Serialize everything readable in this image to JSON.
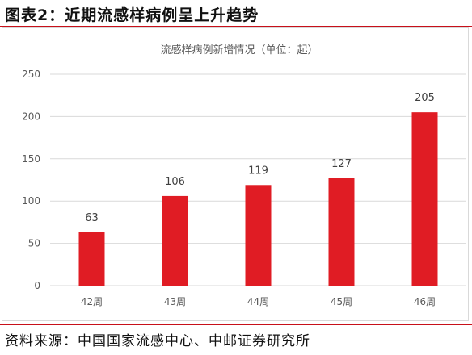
{
  "figure_title": "图表2：近期流感样病例呈上升趋势",
  "source_text": "资料来源：中国国家流感中心、中邮证券研究所",
  "colors": {
    "bar": "#e01c24",
    "rule": "#c8101a",
    "grid": "#d9d9d9",
    "axis_text": "#595959"
  },
  "chart_data": {
    "type": "bar",
    "title": "流感样病例新增情况（单位：起）",
    "categories": [
      "42周",
      "43周",
      "44周",
      "45周",
      "46周"
    ],
    "values": [
      63,
      106,
      119,
      127,
      205
    ],
    "xlabel": "",
    "ylabel": "",
    "ylim": [
      0,
      250
    ],
    "yticks": [
      0,
      50,
      100,
      150,
      200,
      250
    ],
    "grid": true,
    "legend": "none"
  }
}
